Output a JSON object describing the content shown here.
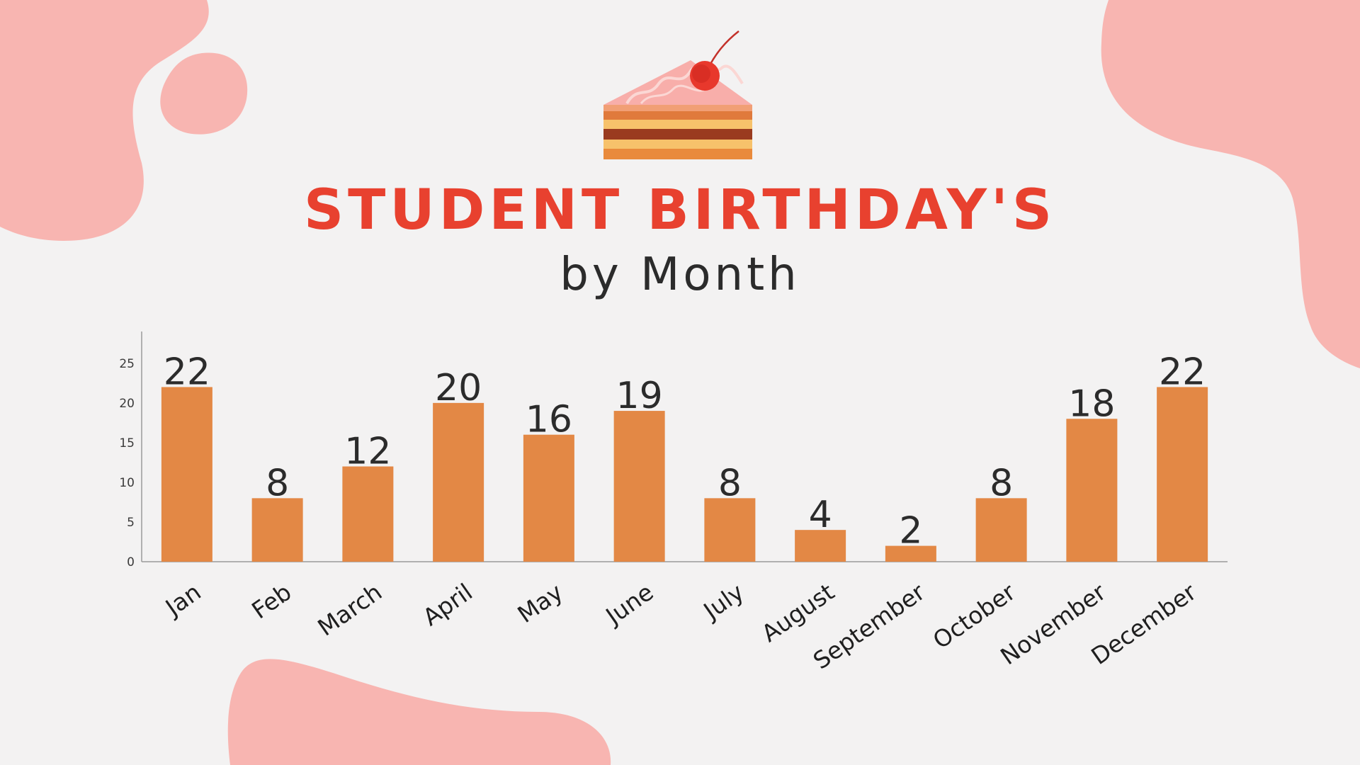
{
  "title": "STUDENT BIRTHDAY'S",
  "subtitle": "by Month",
  "colors": {
    "background": "#f3f2f2",
    "accent_title": "#e8412f",
    "subtitle_text": "#2b2b2b",
    "bar": "#e38845",
    "blob": "#f8b5b1",
    "value_label": "#2b2b2b",
    "axis": "#9a9a9a"
  },
  "decorations": {
    "icon": "cake-slice-icon"
  },
  "chart_data": {
    "type": "bar",
    "categories": [
      "Jan",
      "Feb",
      "March",
      "April",
      "May",
      "June",
      "July",
      "August",
      "September",
      "October",
      "November",
      "December"
    ],
    "values": [
      22,
      8,
      12,
      20,
      16,
      19,
      8,
      4,
      2,
      8,
      18,
      22
    ],
    "title": "",
    "xlabel": "",
    "ylabel": "",
    "ylim": [
      0,
      29
    ],
    "yticks": [
      0,
      5,
      10,
      15,
      20,
      25
    ],
    "grid": false,
    "legend": "none",
    "data_labels": true
  }
}
